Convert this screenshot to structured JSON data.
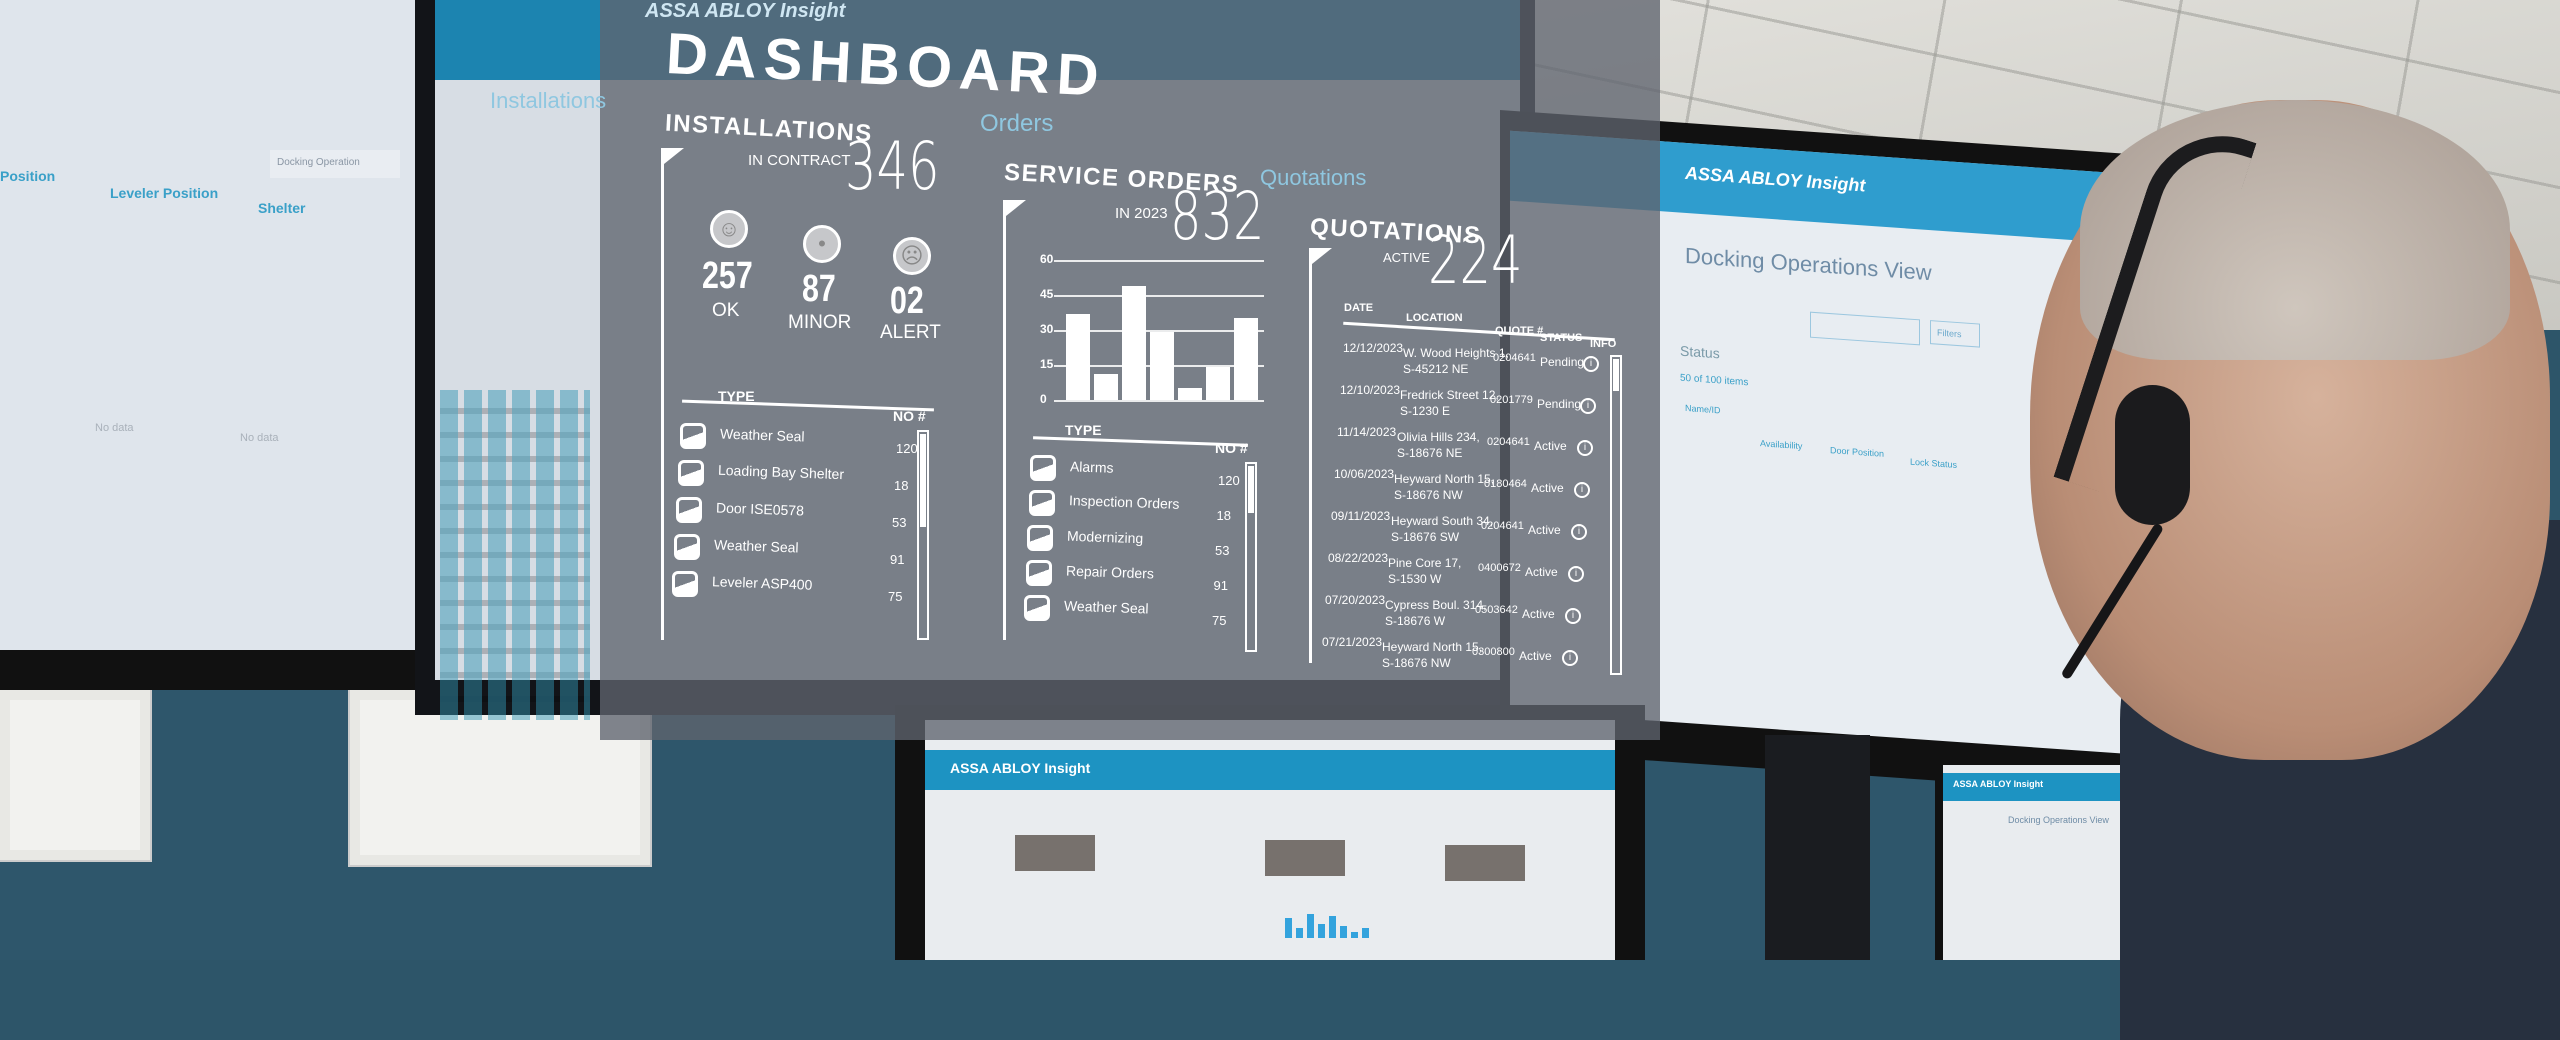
{
  "overlay": {
    "title": "DASHBOARD",
    "installations": {
      "title": "INSTALLATIONS",
      "subtitle": "IN CONTRACT",
      "total": "346",
      "stats": [
        {
          "value": "257",
          "label": "OK",
          "icon": "smile-face-icon"
        },
        {
          "value": "87",
          "label": "MINOR",
          "icon": "neutral-face-icon"
        },
        {
          "value": "02",
          "label": "ALERT",
          "icon": "sad-face-icon"
        }
      ],
      "table": {
        "col_type": "TYPE",
        "col_no": "NO #",
        "rows": [
          {
            "type": "Weather Seal",
            "no": "120"
          },
          {
            "type": "Loading Bay Shelter",
            "no": "18"
          },
          {
            "type": "Door ISE0578",
            "no": "53"
          },
          {
            "type": "Weather Seal",
            "no": "91"
          },
          {
            "type": "Leveler ASP400",
            "no": "75"
          }
        ]
      }
    },
    "service_orders": {
      "title": "SERVICE ORDERS",
      "subtitle": "IN 2023",
      "total": "832",
      "table": {
        "col_type": "TYPE",
        "col_no": "NO #",
        "rows": [
          {
            "type": "Alarms",
            "no": "120"
          },
          {
            "type": "Inspection Orders",
            "no": "18"
          },
          {
            "type": "Modernizing",
            "no": "53"
          },
          {
            "type": "Repair Orders",
            "no": "91"
          },
          {
            "type": "Weather Seal",
            "no": "75"
          }
        ]
      }
    },
    "quotations": {
      "title": "QUOTATIONS",
      "subtitle": "ACTIVE",
      "total": "224",
      "columns": {
        "date": "DATE",
        "location": "LOCATION",
        "quote": "QUOTE #",
        "status": "STATUS",
        "info": "INFO"
      },
      "rows": [
        {
          "date": "12/12/2023",
          "loc1": "W. Wood Heights 1,",
          "loc2": "S-45212 NE",
          "quote": "0204641",
          "status": "Pending"
        },
        {
          "date": "12/10/2023",
          "loc1": "Fredrick Street 12,",
          "loc2": "S-1230 E",
          "quote": "0201779",
          "status": "Pending"
        },
        {
          "date": "11/14/2023",
          "loc1": "Olivia Hills 234,",
          "loc2": "S-18676 NE",
          "quote": "0204641",
          "status": "Active"
        },
        {
          "date": "10/06/2023",
          "loc1": "Heyward North 15,",
          "loc2": "S-18676 NW",
          "quote": "0180464",
          "status": "Active"
        },
        {
          "date": "09/11/2023",
          "loc1": "Heyward South 34,",
          "loc2": "S-18676 SW",
          "quote": "0204641",
          "status": "Active"
        },
        {
          "date": "08/22/2023",
          "loc1": "Pine Core 17,",
          "loc2": "S-1530 W",
          "quote": "0400672",
          "status": "Active"
        },
        {
          "date": "07/20/2023",
          "loc1": "Cypress Boul. 314,",
          "loc2": "S-18676 W",
          "quote": "0503642",
          "status": "Active"
        },
        {
          "date": "07/21/2023",
          "loc1": "Heyward North 15,",
          "loc2": "S-18676 NW",
          "quote": "0300800",
          "status": "Active"
        }
      ],
      "info_icon": "info-circle-icon"
    }
  },
  "chart_data": {
    "type": "bar",
    "values": [
      37,
      11,
      49,
      29,
      5,
      14,
      35
    ],
    "yticks": [
      "0",
      "15",
      "30",
      "45",
      "60"
    ],
    "ylim": [
      0,
      60
    ],
    "grid": true,
    "color": "#ffffff"
  },
  "left_monitor": {
    "columns": [
      "Position",
      "Leveler Position",
      "Shelter"
    ],
    "dropdown": "Docking Operation",
    "empty": [
      "No data",
      "No data"
    ]
  },
  "right_monitor": {
    "logo": "ASSA ABLOY Insight",
    "title": "Docking Operations View",
    "filter_label": "Filters",
    "status_label": "Status",
    "count": "50 of 100 items",
    "columns": [
      "Name/ID",
      "Availability",
      "Door Position",
      "Lock Status"
    ]
  },
  "background_monitors": {
    "main_logo": "ASSA ABLOY Insight",
    "main_sections": [
      "Installations",
      "Orders",
      "Quotations"
    ],
    "bottom_logo": "ASSA ABLOY Insight"
  },
  "colors": {
    "brand_blue": "#1c84b0",
    "wall": "#2e566b",
    "overlay": "#5f646e"
  }
}
